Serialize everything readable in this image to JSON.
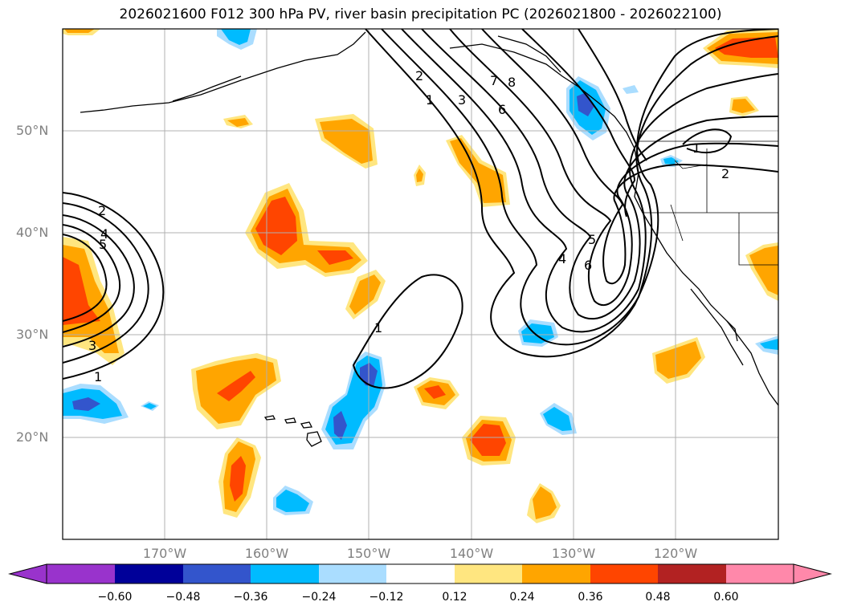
{
  "title": "2026021600 F012 300 hPa PV, river basin precipitation PC (2026021800 - 2026022100)",
  "lat_labels": [
    "50°N",
    "40°N",
    "30°N",
    "20°N"
  ],
  "lon_labels": [
    "170°W",
    "160°W",
    "150°W",
    "140°W",
    "130°W",
    "120°W"
  ],
  "colorbar": {
    "ticks": [
      "−0.60",
      "−0.48",
      "−0.36",
      "−0.24",
      "−0.12",
      "0.12",
      "0.24",
      "0.36",
      "0.48",
      "0.60"
    ],
    "colors": [
      "#9933cc",
      "#000099",
      "#3355cc",
      "#00bbff",
      "#aaddff",
      "#ffffff",
      "#ffe680",
      "#ffa500",
      "#ff4500",
      "#b22222",
      "#ff88aa"
    ]
  },
  "pv_contour_labels": [
    "2",
    "1",
    "3",
    "7",
    "8",
    "6",
    "2",
    "4",
    "5",
    "3",
    "1",
    "1",
    "4",
    "5",
    "6",
    "1",
    "2"
  ],
  "map_colors": {
    "water": "#ffffff",
    "grid": "#b0b0b0",
    "coast": "#000000",
    "contour": "#000000"
  }
}
